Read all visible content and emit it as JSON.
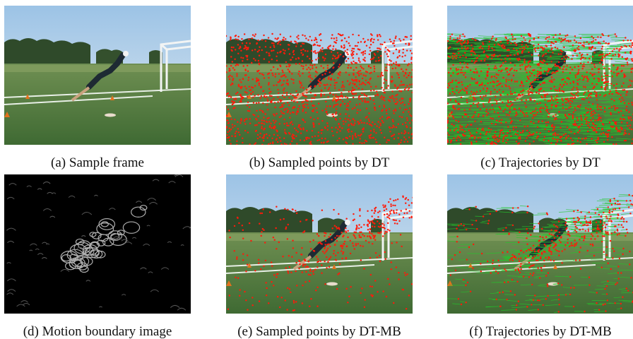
{
  "figure": {
    "panels": [
      {
        "caption": "(a) Sample frame"
      },
      {
        "caption": "(b) Sampled points by DT"
      },
      {
        "caption": "(c) Trajectories by DT"
      },
      {
        "caption": "(d) Motion boundary image"
      },
      {
        "caption": "(e) Sampled points by DT-MB"
      },
      {
        "caption": "(f) Trajectories by DT-MB"
      }
    ]
  }
}
